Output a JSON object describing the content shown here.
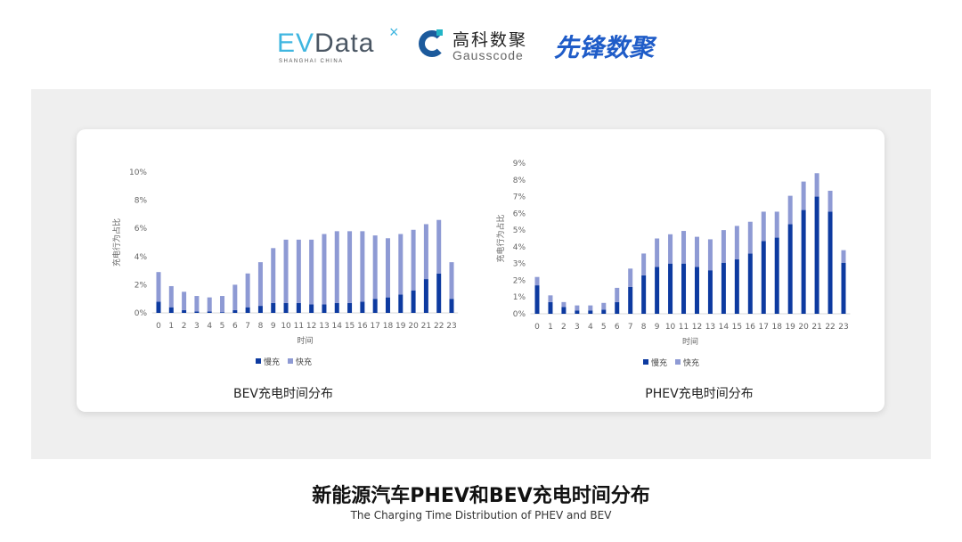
{
  "logos": {
    "evdata": {
      "ev": "EV",
      "data": "Data",
      "x": "×",
      "sub": "SHANGHAI CHINA"
    },
    "gausscode": {
      "cn": "高科数聚",
      "en": "Gausscode"
    },
    "xianfeng": "先锋数聚"
  },
  "colors": {
    "slow": "#0d3aa0",
    "fast": "#8e9ad4",
    "panel": "#efefef"
  },
  "chart_data": [
    {
      "type": "bar",
      "stacked": true,
      "title": "BEV充电时间分布",
      "xlabel": "时间",
      "ylabel": "充电行为占比",
      "ylim": [
        0,
        10
      ],
      "yticks": [
        "0%",
        "2%",
        "4%",
        "6%",
        "8%",
        "10%"
      ],
      "ytick_values": [
        0,
        2,
        4,
        6,
        8,
        10
      ],
      "categories": [
        "0",
        "1",
        "2",
        "3",
        "4",
        "5",
        "6",
        "7",
        "8",
        "9",
        "10",
        "11",
        "12",
        "13",
        "14",
        "15",
        "16",
        "17",
        "18",
        "19",
        "20",
        "21",
        "22",
        "23"
      ],
      "legend_position": "bottom",
      "series": [
        {
          "name": "慢充",
          "values": [
            0.8,
            0.4,
            0.2,
            0.1,
            0.1,
            0.05,
            0.2,
            0.4,
            0.5,
            0.7,
            0.7,
            0.7,
            0.6,
            0.6,
            0.7,
            0.7,
            0.8,
            1.0,
            1.1,
            1.3,
            1.6,
            2.4,
            2.8,
            1.0
          ]
        },
        {
          "name": "快充",
          "values": [
            2.1,
            1.5,
            1.3,
            1.1,
            1.0,
            1.15,
            1.8,
            2.4,
            3.1,
            3.9,
            4.5,
            4.5,
            4.6,
            5.0,
            5.1,
            5.1,
            5.0,
            4.5,
            4.2,
            4.3,
            4.3,
            3.9,
            3.8,
            2.6
          ]
        }
      ]
    },
    {
      "type": "bar",
      "stacked": true,
      "title": "PHEV充电时间分布",
      "xlabel": "时间",
      "ylabel": "充电行为占比",
      "ylim": [
        0,
        9
      ],
      "yticks": [
        "0%",
        "1%",
        "2%",
        "3%",
        "4%",
        "5%",
        "6%",
        "7%",
        "8%",
        "9%"
      ],
      "ytick_values": [
        0,
        1,
        2,
        3,
        4,
        5,
        6,
        7,
        8,
        9
      ],
      "categories": [
        "0",
        "1",
        "2",
        "3",
        "4",
        "5",
        "6",
        "7",
        "8",
        "9",
        "10",
        "11",
        "12",
        "13",
        "14",
        "15",
        "16",
        "17",
        "18",
        "19",
        "20",
        "21",
        "22",
        "23"
      ],
      "legend_position": "bottom",
      "series": [
        {
          "name": "慢充",
          "values": [
            1.7,
            0.7,
            0.4,
            0.2,
            0.2,
            0.25,
            0.7,
            1.6,
            2.3,
            2.8,
            3.0,
            3.0,
            2.8,
            2.6,
            3.05,
            3.25,
            3.6,
            4.35,
            4.55,
            5.35,
            6.2,
            7.0,
            6.1,
            3.05
          ]
        },
        {
          "name": "快充",
          "values": [
            0.5,
            0.4,
            0.3,
            0.3,
            0.3,
            0.4,
            0.85,
            1.1,
            1.3,
            1.7,
            1.75,
            1.95,
            1.8,
            1.85,
            1.95,
            2.0,
            1.9,
            1.75,
            1.55,
            1.7,
            1.7,
            1.4,
            1.25,
            0.75
          ]
        }
      ]
    }
  ],
  "footer": {
    "title": "新能源汽车PHEV和BEV充电时间分布",
    "subtitle": "The Charging Time Distribution of PHEV and BEV"
  }
}
